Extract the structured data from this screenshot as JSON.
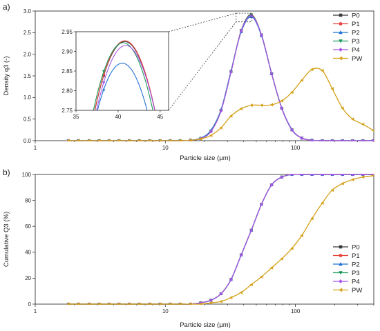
{
  "chart_data": [
    {
      "panel_label": "a)",
      "type": "line",
      "xscale": "log",
      "xlabel": "Particle size (µm)",
      "ylabel": "Density q3 (-)",
      "xlim": [
        1,
        400
      ],
      "ylim": [
        0,
        3.0
      ],
      "x_ticks": [
        1,
        10,
        100
      ],
      "x_tick_labels": [
        "1",
        "10",
        "100"
      ],
      "y_ticks": [
        0,
        0.5,
        1.0,
        1.5,
        2.0,
        2.5,
        3.0
      ],
      "y_tick_labels": [
        "0.0",
        "0.5",
        "1.0",
        "1.5",
        "2.0",
        "2.5",
        "3.0"
      ],
      "legend_position": "top-right",
      "series": [
        {
          "name": "P0",
          "color": "#3a3a3a",
          "marker": "square",
          "x": [
            1.8,
            2.15,
            2.6,
            3.1,
            3.7,
            4.4,
            5.3,
            6.3,
            7.6,
            9.1,
            10.9,
            13.0,
            15.6,
            18.7,
            22.4,
            26.8,
            32.0,
            38.3,
            45.8,
            54.8,
            65.6,
            78.5,
            94.0,
            112,
            134,
            161,
            192,
            230,
            275,
            330,
            395
          ],
          "y": [
            0,
            0,
            0,
            0,
            0,
            0,
            0,
            0,
            0,
            0,
            0,
            0,
            0.01,
            0.05,
            0.22,
            0.7,
            1.6,
            2.55,
            2.9,
            2.45,
            1.55,
            0.75,
            0.25,
            0.06,
            0.01,
            0,
            0,
            0,
            0,
            0,
            0
          ]
        },
        {
          "name": "P1",
          "color": "#e8423d",
          "marker": "circle",
          "x": [
            1.8,
            2.15,
            2.6,
            3.1,
            3.7,
            4.4,
            5.3,
            6.3,
            7.6,
            9.1,
            10.9,
            13.0,
            15.6,
            18.7,
            22.4,
            26.8,
            32.0,
            38.3,
            45.8,
            54.8,
            65.6,
            78.5,
            94.0,
            112,
            134,
            161,
            192,
            230,
            275,
            330,
            395
          ],
          "y": [
            0,
            0,
            0,
            0,
            0,
            0,
            0,
            0,
            0,
            0,
            0,
            0,
            0.01,
            0.05,
            0.22,
            0.7,
            1.6,
            2.55,
            2.92,
            2.45,
            1.55,
            0.75,
            0.25,
            0.06,
            0.01,
            0,
            0,
            0,
            0,
            0,
            0
          ]
        },
        {
          "name": "P2",
          "color": "#1f6fd1",
          "marker": "triangle-up",
          "x": [
            1.8,
            2.15,
            2.6,
            3.1,
            3.7,
            4.4,
            5.3,
            6.3,
            7.6,
            9.1,
            10.9,
            13.0,
            15.6,
            18.7,
            22.4,
            26.8,
            32.0,
            38.3,
            45.8,
            54.8,
            65.6,
            78.5,
            94.0,
            112,
            134,
            161,
            192,
            230,
            275,
            330,
            395
          ],
          "y": [
            0,
            0,
            0,
            0,
            0,
            0,
            0,
            0,
            0,
            0,
            0,
            0,
            0.01,
            0.06,
            0.24,
            0.72,
            1.62,
            2.52,
            2.87,
            2.43,
            1.55,
            0.76,
            0.26,
            0.06,
            0.01,
            0,
            0,
            0,
            0,
            0,
            0
          ]
        },
        {
          "name": "P3",
          "color": "#1a9a5a",
          "marker": "triangle-down",
          "x": [
            1.8,
            2.15,
            2.6,
            3.1,
            3.7,
            4.4,
            5.3,
            6.3,
            7.6,
            9.1,
            10.9,
            13.0,
            15.6,
            18.7,
            22.4,
            26.8,
            32.0,
            38.3,
            45.8,
            54.8,
            65.6,
            78.5,
            94.0,
            112,
            134,
            161,
            192,
            230,
            275,
            330,
            395
          ],
          "y": [
            0,
            0,
            0,
            0,
            0,
            0,
            0,
            0,
            0,
            0,
            0,
            0,
            0.01,
            0.05,
            0.22,
            0.7,
            1.6,
            2.55,
            2.91,
            2.45,
            1.55,
            0.75,
            0.25,
            0.06,
            0.01,
            0,
            0,
            0,
            0,
            0,
            0
          ]
        },
        {
          "name": "P4",
          "color": "#a855e8",
          "marker": "diamond",
          "x": [
            1.8,
            2.15,
            2.6,
            3.1,
            3.7,
            4.4,
            5.3,
            6.3,
            7.6,
            9.1,
            10.9,
            13.0,
            15.6,
            18.7,
            22.4,
            26.8,
            32.0,
            38.3,
            45.8,
            54.8,
            65.6,
            78.5,
            94.0,
            112,
            134,
            161,
            192,
            230,
            275,
            330,
            395
          ],
          "y": [
            0,
            0,
            0,
            0,
            0,
            0,
            0,
            0,
            0,
            0,
            0,
            0,
            0.01,
            0.05,
            0.21,
            0.69,
            1.59,
            2.54,
            2.89,
            2.45,
            1.55,
            0.75,
            0.25,
            0.06,
            0.01,
            0,
            0,
            0,
            0,
            0,
            0
          ]
        },
        {
          "name": "PW",
          "color": "#d4a017",
          "marker": "triangle-left",
          "x": [
            1.8,
            2.15,
            2.6,
            3.1,
            3.7,
            4.4,
            5.3,
            6.3,
            7.6,
            9.1,
            10.9,
            13.0,
            15.6,
            18.7,
            22.4,
            26.8,
            32.0,
            38.3,
            45.8,
            54.8,
            65.6,
            78.5,
            94.0,
            112,
            134,
            161,
            192,
            230,
            275,
            330,
            395
          ],
          "y": [
            0,
            0,
            0,
            0,
            0,
            0,
            0,
            0,
            0,
            0,
            0,
            0,
            0.01,
            0.04,
            0.12,
            0.3,
            0.57,
            0.74,
            0.82,
            0.82,
            0.83,
            0.92,
            1.12,
            1.4,
            1.65,
            1.62,
            1.2,
            0.75,
            0.5,
            0.38,
            0.24
          ]
        }
      ],
      "inset": {
        "xlim": [
          35,
          46
        ],
        "ylim": [
          2.75,
          2.95
        ],
        "x_ticks": [
          35,
          40,
          45
        ],
        "x_tick_labels": [
          "35",
          "40",
          "45"
        ],
        "y_ticks": [
          2.75,
          2.8,
          2.85,
          2.9,
          2.95
        ],
        "y_tick_labels": [
          "2.75",
          "2.80",
          "2.85",
          "2.90",
          "2.95"
        ],
        "curves": [
          {
            "series": "P0",
            "peak_x": 40.8,
            "peak_y": 2.925
          },
          {
            "series": "P1",
            "peak_x": 40.8,
            "peak_y": 2.927
          },
          {
            "series": "P3",
            "peak_x": 40.6,
            "peak_y": 2.922
          },
          {
            "series": "P4",
            "peak_x": 40.9,
            "peak_y": 2.915
          },
          {
            "series": "P2",
            "peak_x": 40.5,
            "peak_y": 2.87
          }
        ]
      }
    },
    {
      "panel_label": "b)",
      "type": "line",
      "xscale": "log",
      "xlabel": "Particle size (µm)",
      "ylabel": "Cumulative Q3 (%)",
      "xlim": [
        1,
        400
      ],
      "ylim": [
        0,
        100
      ],
      "x_ticks": [
        1,
        10,
        100
      ],
      "x_tick_labels": [
        "1",
        "10",
        "100"
      ],
      "y_ticks": [
        0,
        20,
        40,
        60,
        80,
        100
      ],
      "y_tick_labels": [
        "0",
        "20",
        "40",
        "60",
        "80",
        "100"
      ],
      "legend_position": "bottom-right",
      "series": [
        {
          "name": "P0",
          "color": "#3a3a3a",
          "marker": "square",
          "x": [
            1.8,
            2.15,
            2.6,
            3.1,
            3.7,
            4.4,
            5.3,
            6.3,
            7.6,
            9.1,
            10.9,
            13.0,
            15.6,
            18.7,
            22.4,
            26.8,
            32.0,
            38.3,
            45.8,
            54.8,
            65.6,
            78.5,
            94.0,
            112,
            134,
            161,
            192,
            230,
            275,
            330,
            395
          ],
          "y": [
            0,
            0,
            0,
            0,
            0,
            0,
            0,
            0,
            0,
            0,
            0,
            0,
            0,
            1,
            3,
            8,
            19,
            38,
            57,
            77,
            92,
            98,
            100,
            100,
            100,
            100,
            100,
            100,
            100,
            100,
            100
          ]
        },
        {
          "name": "P1",
          "color": "#e8423d",
          "marker": "circle",
          "x": [
            1.8,
            2.15,
            2.6,
            3.1,
            3.7,
            4.4,
            5.3,
            6.3,
            7.6,
            9.1,
            10.9,
            13.0,
            15.6,
            18.7,
            22.4,
            26.8,
            32.0,
            38.3,
            45.8,
            54.8,
            65.6,
            78.5,
            94.0,
            112,
            134,
            161,
            192,
            230,
            275,
            330,
            395
          ],
          "y": [
            0,
            0,
            0,
            0,
            0,
            0,
            0,
            0,
            0,
            0,
            0,
            0,
            0,
            1,
            3,
            8,
            19,
            38,
            57,
            77,
            92,
            98,
            100,
            100,
            100,
            100,
            100,
            100,
            100,
            100,
            100
          ]
        },
        {
          "name": "P2",
          "color": "#1f6fd1",
          "marker": "triangle-up",
          "x": [
            1.8,
            2.15,
            2.6,
            3.1,
            3.7,
            4.4,
            5.3,
            6.3,
            7.6,
            9.1,
            10.9,
            13.0,
            15.6,
            18.7,
            22.4,
            26.8,
            32.0,
            38.3,
            45.8,
            54.8,
            65.6,
            78.5,
            94.0,
            112,
            134,
            161,
            192,
            230,
            275,
            330,
            395
          ],
          "y": [
            0,
            0,
            0,
            0,
            0,
            0,
            0,
            0,
            0,
            0,
            0,
            0,
            0,
            1,
            3,
            8,
            19,
            38,
            57,
            77,
            92,
            98,
            100,
            100,
            100,
            100,
            100,
            100,
            100,
            100,
            100
          ]
        },
        {
          "name": "P3",
          "color": "#1a9a5a",
          "marker": "triangle-down",
          "x": [
            1.8,
            2.15,
            2.6,
            3.1,
            3.7,
            4.4,
            5.3,
            6.3,
            7.6,
            9.1,
            10.9,
            13.0,
            15.6,
            18.7,
            22.4,
            26.8,
            32.0,
            38.3,
            45.8,
            54.8,
            65.6,
            78.5,
            94.0,
            112,
            134,
            161,
            192,
            230,
            275,
            330,
            395
          ],
          "y": [
            0,
            0,
            0,
            0,
            0,
            0,
            0,
            0,
            0,
            0,
            0,
            0,
            0,
            1,
            3,
            8,
            19,
            38,
            57,
            77,
            92,
            98,
            100,
            100,
            100,
            100,
            100,
            100,
            100,
            100,
            100
          ]
        },
        {
          "name": "P4",
          "color": "#a855e8",
          "marker": "diamond",
          "x": [
            1.8,
            2.15,
            2.6,
            3.1,
            3.7,
            4.4,
            5.3,
            6.3,
            7.6,
            9.1,
            10.9,
            13.0,
            15.6,
            18.7,
            22.4,
            26.8,
            32.0,
            38.3,
            45.8,
            54.8,
            65.6,
            78.5,
            94.0,
            112,
            134,
            161,
            192,
            230,
            275,
            330,
            395
          ],
          "y": [
            0,
            0,
            0,
            0,
            0,
            0,
            0,
            0,
            0,
            0,
            0,
            0,
            0,
            1,
            3,
            8,
            19,
            38,
            57,
            77,
            92,
            98,
            100,
            100,
            100,
            100,
            100,
            100,
            100,
            100,
            100
          ]
        },
        {
          "name": "PW",
          "color": "#d4a017",
          "marker": "triangle-left",
          "x": [
            1.8,
            2.15,
            2.6,
            3.1,
            3.7,
            4.4,
            5.3,
            6.3,
            7.6,
            9.1,
            10.9,
            13.0,
            15.6,
            18.7,
            22.4,
            26.8,
            32.0,
            38.3,
            45.8,
            54.8,
            65.6,
            78.5,
            94.0,
            112,
            134,
            161,
            192,
            230,
            275,
            330,
            395
          ],
          "y": [
            0,
            0,
            0,
            0,
            0,
            0,
            0,
            0,
            0,
            0,
            0,
            0,
            0,
            0,
            1,
            2,
            5,
            9,
            15,
            21,
            28,
            35,
            43,
            53,
            66,
            78,
            88,
            93,
            96,
            98,
            99
          ]
        }
      ]
    }
  ]
}
